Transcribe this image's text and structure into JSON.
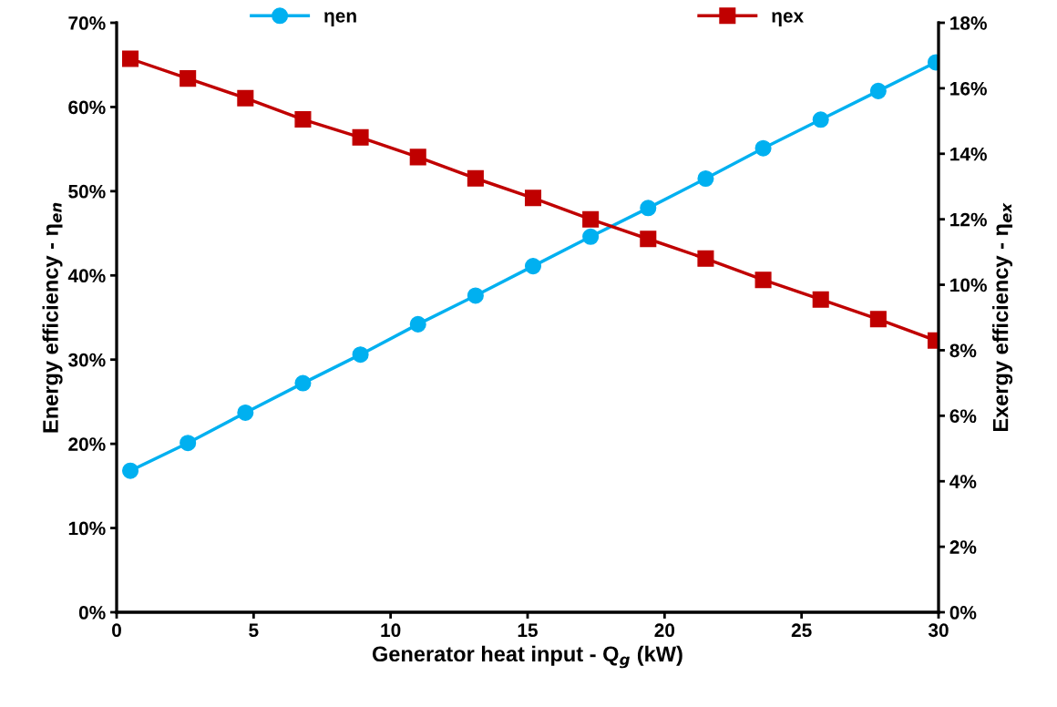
{
  "chart_data": {
    "type": "line",
    "xlabel": "Generator heat input - Q$_{g}$ (kW)",
    "ylabel": "Energy efficiency - η$_{en}$",
    "y2label": "Exergy efficiency - η$_{ex}$",
    "x": [
      0.5,
      2.6,
      4.7,
      6.8,
      8.9,
      11.0,
      13.1,
      15.2,
      17.3,
      19.4,
      21.5,
      23.6,
      25.7,
      27.8,
      29.9
    ],
    "series": [
      {
        "name": "ηen",
        "color": "#00b0f0",
        "marker": "circle",
        "values": [
          16.8,
          20.1,
          23.7,
          27.2,
          30.6,
          34.2,
          37.6,
          41.1,
          44.6,
          48.0,
          51.5,
          55.1,
          58.5,
          61.9,
          65.3
        ]
      },
      {
        "name": "ηex",
        "color": "#c00000",
        "marker": "square",
        "axis": "y2",
        "values": [
          16.9,
          16.3,
          15.7,
          15.05,
          14.5,
          13.9,
          13.25,
          12.65,
          12.0,
          11.4,
          10.8,
          10.15,
          9.55,
          8.95,
          8.3
        ]
      }
    ],
    "xlim": [
      0,
      30
    ],
    "xticks": [
      0,
      5,
      10,
      15,
      20,
      25,
      30
    ],
    "ylim": [
      0,
      70
    ],
    "yticks": [
      {
        "value": 0,
        "label": "0%"
      },
      {
        "value": 10,
        "label": "10%"
      },
      {
        "value": 20,
        "label": "20%"
      },
      {
        "value": 30,
        "label": "30%"
      },
      {
        "value": 40,
        "label": "40%"
      },
      {
        "value": 50,
        "label": "50%"
      },
      {
        "value": 60,
        "label": "60%"
      },
      {
        "value": 70,
        "label": "70%"
      }
    ],
    "y2lim": [
      0,
      18
    ],
    "y2ticks": [
      {
        "value": 0,
        "label": "0%"
      },
      {
        "value": 2,
        "label": "2%"
      },
      {
        "value": 4,
        "label": "4%"
      },
      {
        "value": 6,
        "label": "6%"
      },
      {
        "value": 8,
        "label": "8%"
      },
      {
        "value": 10,
        "label": "10%"
      },
      {
        "value": 12,
        "label": "12%"
      },
      {
        "value": 14,
        "label": "14%"
      },
      {
        "value": 16,
        "label": "16%"
      },
      {
        "value": 18,
        "label": "18%"
      }
    ],
    "grid": false,
    "legend": "top",
    "line_style": "solid"
  }
}
